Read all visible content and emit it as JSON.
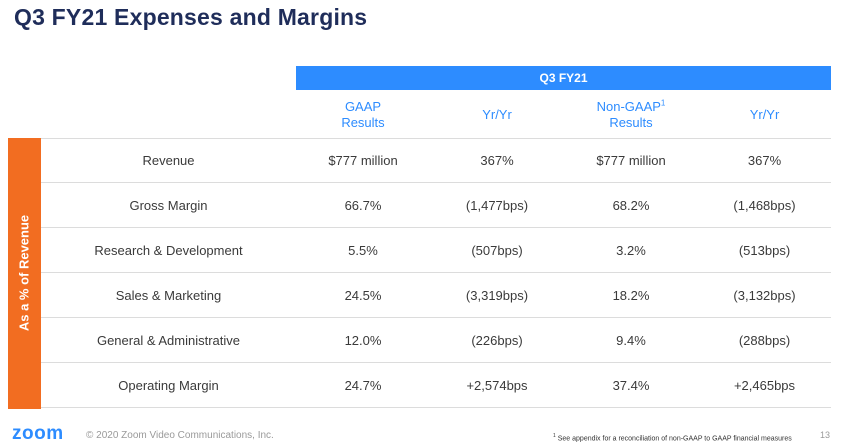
{
  "title": "Q3 FY21 Expenses and Margins",
  "banner": "Q3 FY21",
  "columns": [
    {
      "line1": "GAAP",
      "line2": "Results",
      "sup": ""
    },
    {
      "line1": "Yr/Yr",
      "line2": "",
      "sup": ""
    },
    {
      "line1": "Non-GAAP",
      "line2": "Results",
      "sup": "1"
    },
    {
      "line1": "Yr/Yr",
      "line2": "",
      "sup": ""
    }
  ],
  "side_label": "As a % of Revenue",
  "rows": [
    {
      "label": "Revenue",
      "gaap": "$777 million",
      "gaap_yy": "367%",
      "nongaap": "$777 million",
      "nongaap_yy": "367%"
    },
    {
      "label": "Gross Margin",
      "gaap": "66.7%",
      "gaap_yy": "(1,477bps)",
      "nongaap": "68.2%",
      "nongaap_yy": "(1,468bps)"
    },
    {
      "label": "Research & Development",
      "gaap": "5.5%",
      "gaap_yy": "(507bps)",
      "nongaap": "3.2%",
      "nongaap_yy": "(513bps)"
    },
    {
      "label": "Sales & Marketing",
      "gaap": "24.5%",
      "gaap_yy": "(3,319bps)",
      "nongaap": "18.2%",
      "nongaap_yy": "(3,132bps)"
    },
    {
      "label": "General & Administrative",
      "gaap": "12.0%",
      "gaap_yy": "(226bps)",
      "nongaap": "9.4%",
      "nongaap_yy": "(288bps)"
    },
    {
      "label": "Operating Margin",
      "gaap": "24.7%",
      "gaap_yy": "+2,574bps",
      "nongaap": "37.4%",
      "nongaap_yy": "+2,465bps"
    }
  ],
  "footer": {
    "logo": "zoom",
    "copyright": "© 2020 Zoom Video Communications, Inc.",
    "footnote_mark": "1",
    "footnote": "See appendix for a reconciliation of non-GAAP to GAAP financial measures",
    "page_number": "13"
  },
  "colors": {
    "title": "#1f2d5a",
    "accent_blue": "#2d8cff",
    "accent_orange": "#f26d21"
  }
}
